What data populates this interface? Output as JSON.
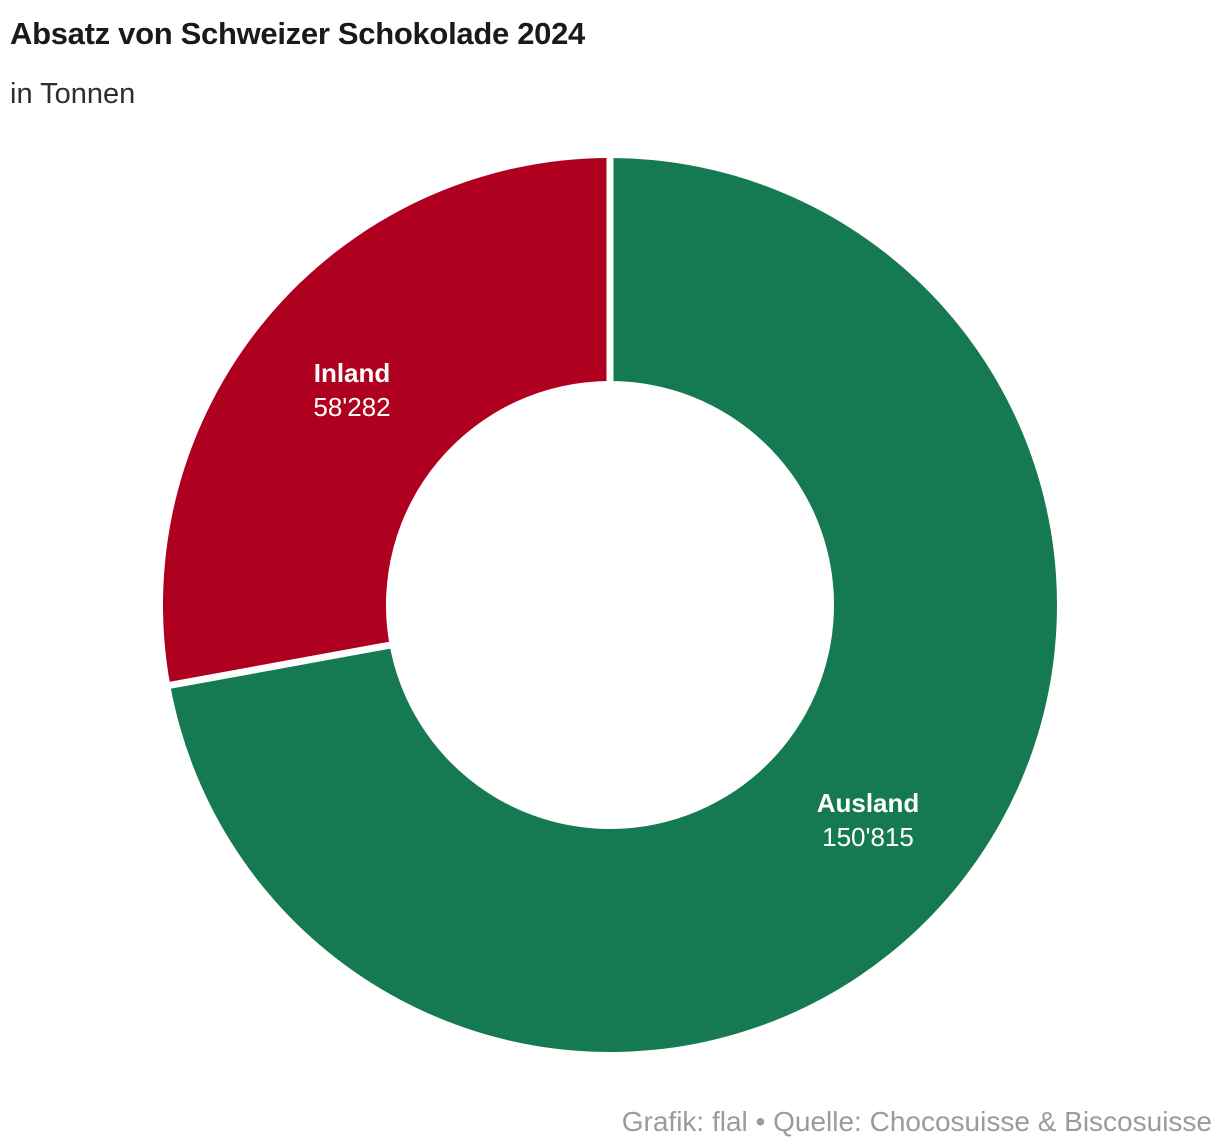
{
  "header": {
    "title": "Absatz von Schweizer Schokolade 2024",
    "subtitle": "in Tonnen"
  },
  "footer": {
    "credit": "Grafik: flal • Quelle: Chocosuisse & Biscosuisse"
  },
  "chart_data": {
    "type": "pie",
    "subtype": "donut",
    "title": "Absatz von Schweizer Schokolade 2024",
    "subtitle": "in Tonnen",
    "unit": "Tonnen",
    "categories": [
      "Ausland",
      "Inland"
    ],
    "values": [
      150815,
      58282
    ],
    "slices": [
      {
        "name": "Ausland",
        "value": 150815,
        "value_label": "150'815",
        "color": "#157A52"
      },
      {
        "name": "Inland",
        "value": 58282,
        "value_label": "58'282",
        "color": "#B0001F"
      }
    ],
    "start_angle_deg": 0,
    "direction": "clockwise",
    "inner_radius_ratio": 0.5,
    "separator_color": "#FFFFFF",
    "label_text_color": "#FFFFFF",
    "legend": "none",
    "background": "#FFFFFF"
  }
}
